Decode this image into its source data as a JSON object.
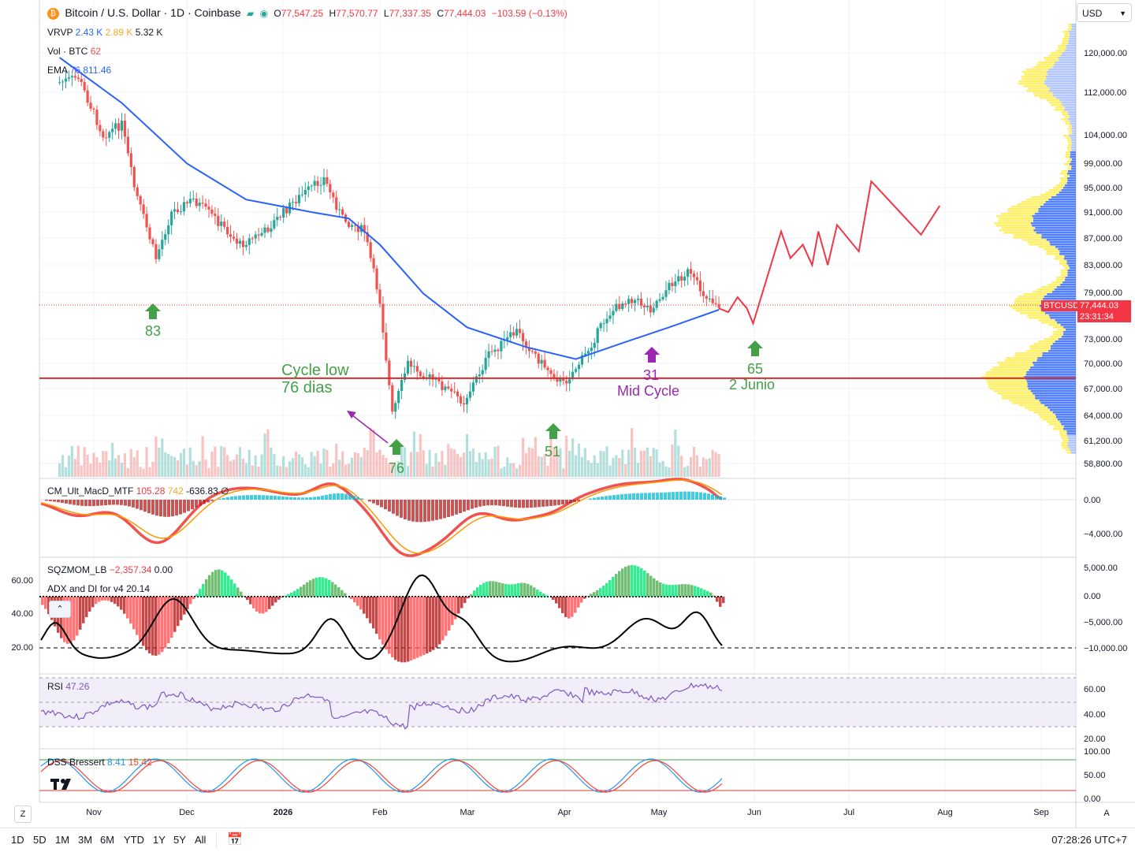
{
  "header": {
    "symbol_title": "Bitcoin / U.S. Dollar · 1D · Coinbase",
    "ohlc": {
      "o_label": "O",
      "o": "77,547.25",
      "h_label": "H",
      "h": "77,570.77",
      "l_label": "L",
      "l": "77,337.35",
      "c_label": "C",
      "c": "77,444.03",
      "change": "−103.59 (−0.13%)"
    },
    "vrvp_label": "VRVP",
    "vrvp_values": [
      "2.43 K",
      "2.89 K",
      "5.32 K"
    ],
    "vol_label": "Vol · BTC",
    "vol_value": "62",
    "ema_label": "EMA",
    "ema_value": "76,811.46"
  },
  "currency_select": "USD",
  "colors": {
    "up": "#26a69a",
    "down": "#ef5350",
    "ema": "#2962ff",
    "projection": "#f23645",
    "annot_green": "#43a047",
    "annot_purple": "#9c27b0",
    "vp_yellow": "#ffeb3b",
    "vp_blue": "#2962ff"
  },
  "price_axis": [
    "120,000.00",
    "112,000.00",
    "104,000.00",
    "99,000.00",
    "95,000.00",
    "91,000.00",
    "87,000.00",
    "83,000.00",
    "79,000.00",
    "73,000.00",
    "70,000.00",
    "67,000.00",
    "64,000.00",
    "61,200.00",
    "58,800.00"
  ],
  "last_price": {
    "symbol": "BTCUSD",
    "price": "77,444.03",
    "countdown": "23:31:34"
  },
  "time_axis": [
    "Nov",
    "Dec",
    "2026",
    "Feb",
    "Mar",
    "Apr",
    "May",
    "Jun",
    "Jul",
    "Aug",
    "Sep"
  ],
  "chart_data": {
    "type": "line",
    "title": "Bitcoin / U.S. Dollar · 1D · Coinbase",
    "ylim": [
      57500,
      126000
    ],
    "log_scale": true,
    "price_path": [
      {
        "x": "Oct 21",
        "y": 114000
      },
      {
        "x": "Oct 27",
        "y": 115000
      },
      {
        "x": "Nov 4",
        "y": 104000
      },
      {
        "x": "Nov 10",
        "y": 106000
      },
      {
        "x": "Nov 14",
        "y": 95000
      },
      {
        "x": "Nov 21",
        "y": 84000
      },
      {
        "x": "Nov 26",
        "y": 91000
      },
      {
        "x": "Dec 3",
        "y": 93000
      },
      {
        "x": "Dec 10",
        "y": 90000
      },
      {
        "x": "Dec 18",
        "y": 86000
      },
      {
        "x": "Dec 26",
        "y": 88000
      },
      {
        "x": "Jan 5",
        "y": 93000
      },
      {
        "x": "Jan 14",
        "y": 96500
      },
      {
        "x": "Jan 20",
        "y": 90000
      },
      {
        "x": "Jan 27",
        "y": 88000
      },
      {
        "x": "Feb 1",
        "y": 78000
      },
      {
        "x": "Feb 5",
        "y": 64000
      },
      {
        "x": "Feb 10",
        "y": 70000
      },
      {
        "x": "Feb 20",
        "y": 67500
      },
      {
        "x": "Feb 28",
        "y": 65500
      },
      {
        "x": "Mar 8",
        "y": 71000
      },
      {
        "x": "Mar 17",
        "y": 74000
      },
      {
        "x": "Mar 25",
        "y": 70000
      },
      {
        "x": "Apr 1",
        "y": 67500
      },
      {
        "x": "Apr 8",
        "y": 71000
      },
      {
        "x": "Apr 15",
        "y": 76000
      },
      {
        "x": "Apr 22",
        "y": 78500
      },
      {
        "x": "Apr 29",
        "y": 77000
      },
      {
        "x": "May 6",
        "y": 80500
      },
      {
        "x": "May 11",
        "y": 82000
      },
      {
        "x": "May 16",
        "y": 79000
      },
      {
        "x": "May 21",
        "y": 77444
      }
    ],
    "ema": [
      {
        "x": "Oct 21",
        "y": 119000
      },
      {
        "x": "Nov 10",
        "y": 110000
      },
      {
        "x": "Dec 1",
        "y": 99000
      },
      {
        "x": "Dec 20",
        "y": 93000
      },
      {
        "x": "Jan 10",
        "y": 91000
      },
      {
        "x": "Jan 22",
        "y": 90000
      },
      {
        "x": "Feb 1",
        "y": 86000
      },
      {
        "x": "Feb 15",
        "y": 79000
      },
      {
        "x": "Mar 1",
        "y": 74500
      },
      {
        "x": "Mar 20",
        "y": 72000
      },
      {
        "x": "Apr 5",
        "y": 70500
      },
      {
        "x": "Apr 20",
        "y": 72500
      },
      {
        "x": "May 5",
        "y": 74500
      },
      {
        "x": "May 21",
        "y": 76811
      }
    ],
    "projection": [
      {
        "x": "May 21",
        "y": 77000
      },
      {
        "x": "May 24",
        "y": 76500
      },
      {
        "x": "May 27",
        "y": 78500
      },
      {
        "x": "May 30",
        "y": 77000
      },
      {
        "x": "Jun 1",
        "y": 75000
      },
      {
        "x": "Jun 10",
        "y": 88000
      },
      {
        "x": "Jun 13",
        "y": 84000
      },
      {
        "x": "Jun 17",
        "y": 86000
      },
      {
        "x": "Jun 20",
        "y": 83000
      },
      {
        "x": "Jun 22",
        "y": 88000
      },
      {
        "x": "Jun 25",
        "y": 83000
      },
      {
        "x": "Jun 28",
        "y": 89000
      },
      {
        "x": "Jul 5",
        "y": 85000
      },
      {
        "x": "Jul 9",
        "y": 96000
      },
      {
        "x": "Jul 25",
        "y": 87500
      },
      {
        "x": "Jul 31",
        "y": 92000
      }
    ],
    "support_line": 68200
  },
  "annotations": {
    "a83": "83",
    "a76": "76",
    "a51": "51",
    "a31": "31",
    "a65": "65",
    "cycle_low_1": "Cycle low",
    "cycle_low_2": "76 dias",
    "mid_cycle": "Mid Cycle",
    "junio": "2 Junio"
  },
  "macd_pane": {
    "label": "CM_Ult_MacD_MTF",
    "values": [
      "105.28",
      "742",
      "-636.83"
    ],
    "axis": [
      "0.00",
      "−4,000.00"
    ]
  },
  "sqz_pane": {
    "label": "SQZMOM_LB",
    "value": "−2,357.34",
    "value2": "0.00",
    "adx_label": "ADX and DI for v4",
    "adx_value": "20.14",
    "axis_right": [
      "5,000.00",
      "0.00",
      "−5,000.00",
      "−10,000.00"
    ],
    "axis_left": [
      "60.00",
      "40.00",
      "20.00"
    ]
  },
  "rsi_pane": {
    "label": "RSI",
    "value": "47.26",
    "axis": [
      "60.00",
      "40.00",
      "20.00"
    ]
  },
  "dss_pane": {
    "label": "DSS Bressert",
    "value1": "8.41",
    "value2": "15.42",
    "axis": [
      "100.00",
      "50.00",
      "0.00"
    ]
  },
  "bottom": {
    "ranges": [
      "1D",
      "5D",
      "1M",
      "3M",
      "6M",
      "YTD",
      "1Y",
      "5Y",
      "All"
    ],
    "time": "07:28:26 UTC+7",
    "auto_label": "A",
    "z_label": "Z"
  }
}
